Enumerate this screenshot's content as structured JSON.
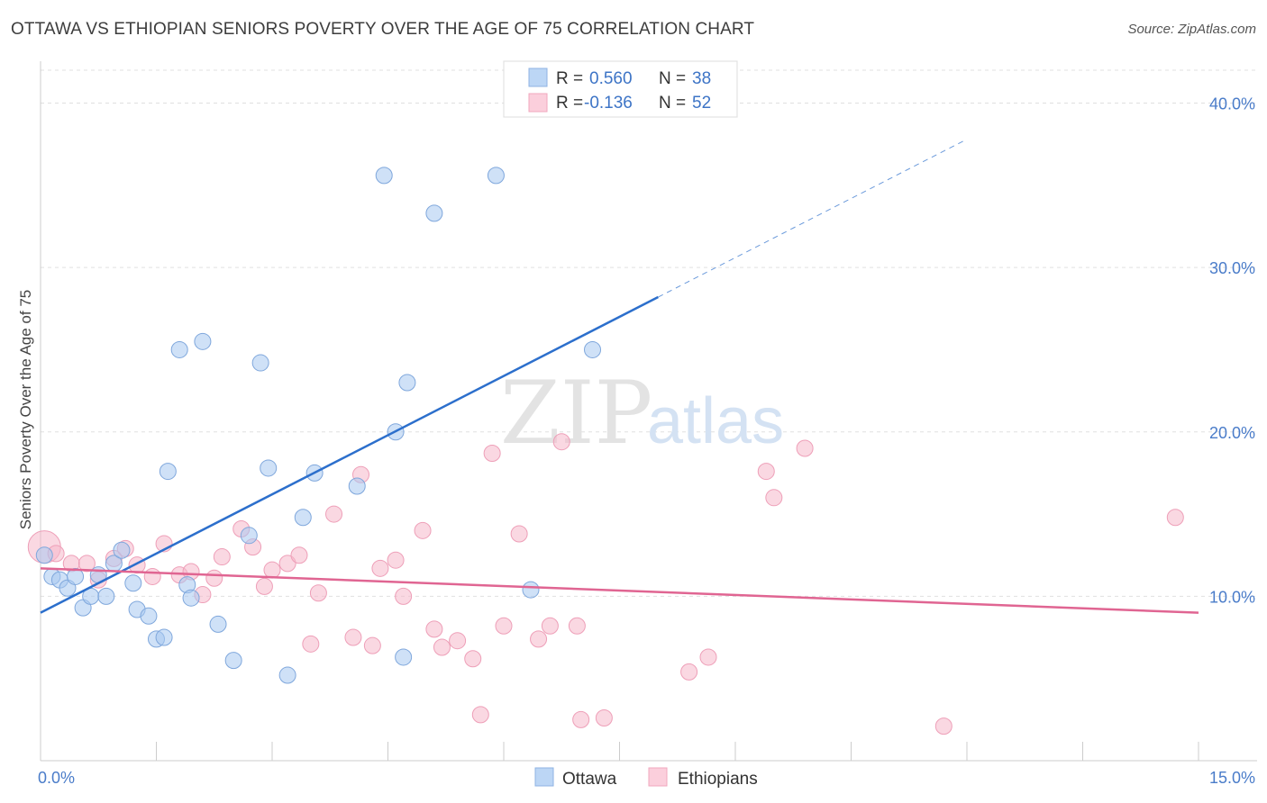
{
  "title": "OTTAWA VS ETHIOPIAN SENIORS POVERTY OVER THE AGE OF 75 CORRELATION CHART",
  "source": "Source: ZipAtlas.com",
  "watermark": {
    "zip": "ZIP",
    "atlas": "atlas"
  },
  "legend": {
    "r_label": "R =",
    "n_label": "N =",
    "ottawa": {
      "r": "0.560",
      "n": "38"
    },
    "ethiopians": {
      "r": "-0.136",
      "n": "52"
    }
  },
  "bottom_legend": {
    "ottawa": "Ottawa",
    "ethiopians": "Ethiopians"
  },
  "chart_data": {
    "type": "scatter",
    "title": "OTTAWA VS ETHIOPIAN SENIORS POVERTY OVER THE AGE OF 75 CORRELATION CHART",
    "ylabel": "Seniors Poverty Over the Age of 75",
    "xlabel": "",
    "xlim": [
      0,
      15
    ],
    "ylim": [
      0,
      42
    ],
    "x_tick_labels": [
      "0.0%",
      "15.0%"
    ],
    "y_ticks": [
      10,
      20,
      30,
      40
    ],
    "y_tick_labels": [
      "10.0%",
      "20.0%",
      "30.0%",
      "40.0%"
    ],
    "grid": true,
    "legend_position": "top-center",
    "colors": {
      "ottawa": "#a8c8f0",
      "ottawa_line": "#2c6fcc",
      "ethiopians": "#f6b8cb",
      "ethiopians_line": "#e06592"
    },
    "series": [
      {
        "name": "Ottawa",
        "r": 0.56,
        "n": 38,
        "trend": {
          "x0": 0.0,
          "y0": 9.0,
          "x1": 8.0,
          "y1": 28.2,
          "dash_to_x": 12.0
        },
        "points": [
          [
            0.05,
            12.5
          ],
          [
            0.15,
            11.2
          ],
          [
            0.25,
            11.0
          ],
          [
            0.35,
            10.5
          ],
          [
            0.45,
            11.2
          ],
          [
            0.55,
            9.3
          ],
          [
            0.65,
            10.0
          ],
          [
            0.75,
            11.3
          ],
          [
            0.85,
            10.0
          ],
          [
            0.95,
            12.0
          ],
          [
            1.05,
            12.8
          ],
          [
            1.2,
            10.8
          ],
          [
            1.25,
            9.2
          ],
          [
            1.4,
            8.8
          ],
          [
            1.5,
            7.4
          ],
          [
            1.6,
            7.5
          ],
          [
            1.65,
            17.6
          ],
          [
            1.8,
            25.0
          ],
          [
            1.9,
            10.7
          ],
          [
            1.95,
            9.9
          ],
          [
            2.1,
            25.5
          ],
          [
            2.3,
            8.3
          ],
          [
            2.5,
            6.1
          ],
          [
            2.7,
            13.7
          ],
          [
            2.85,
            24.2
          ],
          [
            2.95,
            17.8
          ],
          [
            3.2,
            5.2
          ],
          [
            3.4,
            14.8
          ],
          [
            3.55,
            17.5
          ],
          [
            4.1,
            16.7
          ],
          [
            4.45,
            35.6
          ],
          [
            4.6,
            20.0
          ],
          [
            4.7,
            6.3
          ],
          [
            4.75,
            23.0
          ],
          [
            5.1,
            33.3
          ],
          [
            5.9,
            35.6
          ],
          [
            6.35,
            10.4
          ],
          [
            7.15,
            25.0
          ]
        ]
      },
      {
        "name": "Ethiopians",
        "r": -0.136,
        "n": 52,
        "trend": {
          "x0": 0.0,
          "y0": 11.7,
          "x1": 15.0,
          "y1": 9.0
        },
        "points": [
          [
            0.05,
            13.0
          ],
          [
            0.2,
            12.6
          ],
          [
            0.4,
            12.0
          ],
          [
            0.6,
            12.0
          ],
          [
            0.75,
            11.0
          ],
          [
            0.95,
            12.3
          ],
          [
            1.1,
            12.9
          ],
          [
            1.25,
            11.9
          ],
          [
            1.45,
            11.2
          ],
          [
            1.6,
            13.2
          ],
          [
            1.8,
            11.3
          ],
          [
            1.95,
            11.5
          ],
          [
            2.1,
            10.1
          ],
          [
            2.25,
            11.1
          ],
          [
            2.35,
            12.4
          ],
          [
            2.6,
            14.1
          ],
          [
            2.75,
            13.0
          ],
          [
            2.9,
            10.6
          ],
          [
            3.0,
            11.6
          ],
          [
            3.2,
            12.0
          ],
          [
            3.35,
            12.5
          ],
          [
            3.5,
            7.1
          ],
          [
            3.6,
            10.2
          ],
          [
            3.8,
            15.0
          ],
          [
            4.05,
            7.5
          ],
          [
            4.15,
            17.4
          ],
          [
            4.3,
            7.0
          ],
          [
            4.4,
            11.7
          ],
          [
            4.6,
            12.2
          ],
          [
            4.7,
            10.0
          ],
          [
            4.95,
            14.0
          ],
          [
            5.1,
            8.0
          ],
          [
            5.2,
            6.9
          ],
          [
            5.4,
            7.3
          ],
          [
            5.6,
            6.2
          ],
          [
            5.7,
            2.8
          ],
          [
            5.85,
            18.7
          ],
          [
            6.0,
            8.2
          ],
          [
            6.2,
            13.8
          ],
          [
            6.45,
            7.4
          ],
          [
            6.6,
            8.2
          ],
          [
            6.75,
            19.4
          ],
          [
            6.95,
            8.2
          ],
          [
            7.0,
            2.5
          ],
          [
            7.3,
            2.6
          ],
          [
            8.4,
            5.4
          ],
          [
            8.65,
            6.3
          ],
          [
            9.4,
            17.6
          ],
          [
            9.5,
            16.0
          ],
          [
            9.9,
            19.0
          ],
          [
            11.7,
            2.1
          ],
          [
            14.7,
            14.8
          ]
        ]
      }
    ]
  }
}
